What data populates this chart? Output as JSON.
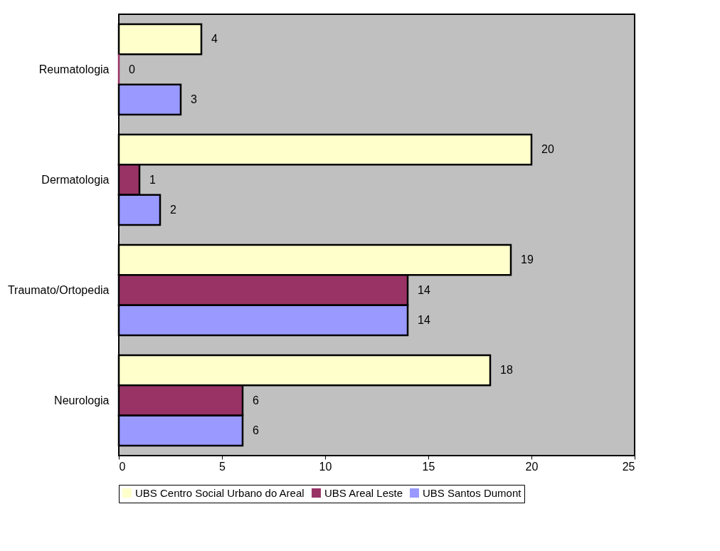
{
  "chart_data": {
    "type": "bar",
    "orientation": "horizontal",
    "categories": [
      "Reumatologia",
      "Dermatologia",
      "Traumato/Ortopedia",
      "Neurologia"
    ],
    "series": [
      {
        "name": "UBS Centro Social Urbano do Areal",
        "color": "#ffffcc",
        "values": [
          4,
          20,
          19,
          18
        ]
      },
      {
        "name": "UBS Areal Leste",
        "color": "#993366",
        "values": [
          0,
          1,
          14,
          6
        ]
      },
      {
        "name": "UBS Santos Dumont",
        "color": "#9999ff",
        "values": [
          3,
          2,
          14,
          6
        ]
      }
    ],
    "xlim": [
      0,
      25
    ],
    "xticks": [
      0,
      5,
      10,
      15,
      20,
      25
    ],
    "data_labels": true,
    "grid": false,
    "legend": "bottom"
  }
}
